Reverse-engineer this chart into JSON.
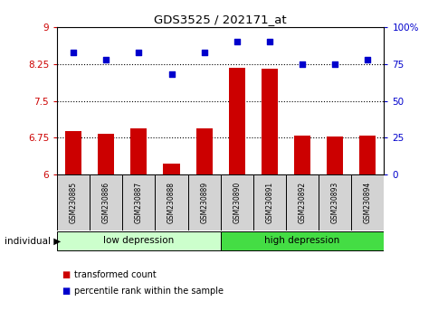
{
  "title": "GDS3525 / 202171_at",
  "samples": [
    "GSM230885",
    "GSM230886",
    "GSM230887",
    "GSM230888",
    "GSM230889",
    "GSM230890",
    "GSM230891",
    "GSM230892",
    "GSM230893",
    "GSM230894"
  ],
  "bar_values": [
    6.88,
    6.82,
    6.94,
    6.22,
    6.93,
    8.18,
    8.16,
    6.79,
    6.78,
    6.79
  ],
  "dot_values": [
    83,
    78,
    83,
    68,
    83,
    90,
    90,
    75,
    75,
    78
  ],
  "ylim_left": [
    6,
    9
  ],
  "ylim_right": [
    0,
    100
  ],
  "yticks_left": [
    6,
    6.75,
    7.5,
    8.25,
    9
  ],
  "yticks_right": [
    0,
    25,
    50,
    75,
    100
  ],
  "ytick_labels_left": [
    "6",
    "6.75",
    "7.5",
    "8.25",
    "9"
  ],
  "ytick_labels_right": [
    "0",
    "25",
    "50",
    "75",
    "100%"
  ],
  "hlines": [
    6.75,
    7.5,
    8.25
  ],
  "bar_color": "#cc0000",
  "dot_color": "#0000cc",
  "group1_label": "low depression",
  "group2_label": "high depression",
  "group1_color": "#ccffcc",
  "group2_color": "#44dd44",
  "group1_indices": [
    0,
    1,
    2,
    3,
    4
  ],
  "group2_indices": [
    5,
    6,
    7,
    8,
    9
  ],
  "individual_label": "individual",
  "legend_bar_label": "transformed count",
  "legend_dot_label": "percentile rank within the sample",
  "tick_color_left": "#cc0000",
  "tick_color_right": "#0000cc",
  "bar_width": 0.5,
  "sample_box_color": "#d3d3d3"
}
